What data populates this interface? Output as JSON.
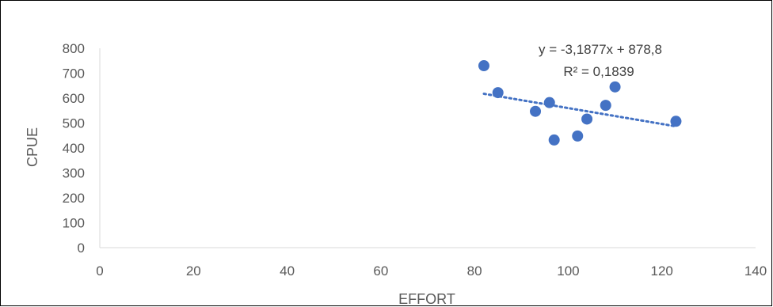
{
  "chart_data": {
    "type": "scatter",
    "xlabel": "EFFORT",
    "ylabel": "CPUE",
    "xlim": [
      0,
      140
    ],
    "ylim": [
      0,
      800
    ],
    "x_ticks": [
      0,
      20,
      40,
      60,
      80,
      100,
      120,
      140
    ],
    "y_ticks": [
      0,
      100,
      200,
      300,
      400,
      500,
      600,
      700,
      800
    ],
    "grid": false,
    "legend": "none",
    "points": [
      {
        "x": 82,
        "y": 730
      },
      {
        "x": 85,
        "y": 622
      },
      {
        "x": 93,
        "y": 547
      },
      {
        "x": 96,
        "y": 582
      },
      {
        "x": 97,
        "y": 432
      },
      {
        "x": 102,
        "y": 448
      },
      {
        "x": 104,
        "y": 516
      },
      {
        "x": 108,
        "y": 571
      },
      {
        "x": 110,
        "y": 645
      },
      {
        "x": 123,
        "y": 507
      }
    ],
    "trendline": {
      "type": "linear",
      "slope": -3.1877,
      "intercept": 878.8,
      "x_range": [
        82,
        123
      ],
      "equation_label": "y = -3,1877x + 878,8",
      "r2_label": "R² = 0,1839"
    },
    "colors": {
      "marker": "#4472c4",
      "trendline": "#4472c4",
      "axis": "#d9d9d9",
      "text": "#595959"
    }
  }
}
